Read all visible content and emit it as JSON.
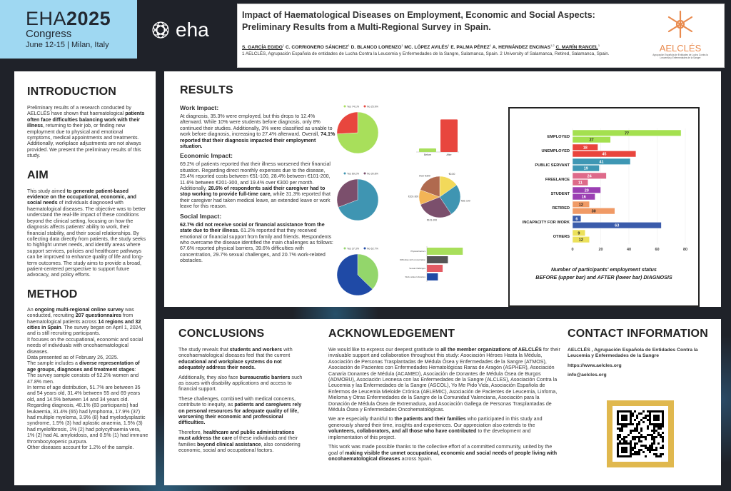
{
  "header": {
    "congress": {
      "eha": "EHA",
      "year": "2025",
      "congress": "Congress",
      "dates": "June 12-15 | Milan, Italy"
    },
    "eha_logo": "eha",
    "title": "Impact of Haematological Diseases on Employment, Economic and Social Aspects: Preliminary Results from a Multi-Regional Survey in Spain.",
    "authors": [
      {
        "name": "S. GARCÍA EGIDO",
        "sup": "1",
        "underline": true
      },
      {
        "name": "C. CORRIONERO SÁNCHEZ",
        "sup": "1",
        "underline": false
      },
      {
        "name": "D. BLANCO LORENZO",
        "sup": "1",
        "underline": false
      },
      {
        "name": "MC. LÓPEZ AVILÉS",
        "sup": "1",
        "underline": false
      },
      {
        "name": "E. PALMA PÉREZ",
        "sup": "1",
        "underline": false
      },
      {
        "name": "A. HERNÁNDEZ ENCINAS",
        "sup": "1,2",
        "underline": false
      },
      {
        "name": "C. MARÍN RANCEL",
        "sup": "1",
        "underline": true
      }
    ],
    "affiliations": "1 AELCLÉS, Agrupación Española de entidades de Lucha Contra la Leucemia y Enfermedades de la Sangre, Salamanca, Spain. 2 University of Salamanca, Retired, Salamanca, Spain.",
    "org_logo": {
      "name": "AELCLÉS",
      "tagline": "Agrupación Española de Entidades de Lucha Contra la Leucemia y Enfermedades de la Sangre"
    }
  },
  "introduction": {
    "heading": "INTRODUCTION",
    "body": [
      [
        {
          "t": "Preliminary results of a research conducted by AELCLÉS have shown that haematological "
        },
        {
          "t": "patients often face difficulties balancing work with their illness",
          "b": true
        },
        {
          "t": ", returning to their job, or finding new employment due to physical and emotional symptoms, medical appointments and treatments. Additionally, workplace adjustments are not always provided. We present the preliminary results of this study."
        }
      ]
    ]
  },
  "aim": {
    "heading": "AIM",
    "body": [
      [
        {
          "t": "This study aimed "
        },
        {
          "t": "to generate patient-based evidence on the occupational, economic, and social needs",
          "b": true
        },
        {
          "t": " of individuals diagnosed with haematological diseases. The objective was to better understand the real-life impact of these conditions beyond the clinical setting, focusing on how the diagnosis affects patients' ability to work, their financial stability, and their social relationships. By collecting data directly from patients, the study seeks to highlight unmet needs, and identify areas where support services, policies and healthcare pathways can be improved to enhance quality of life and long-term outcomes. The study aims to provide a broad, patient-centered perspective to support future advocacy, and policy efforts."
        }
      ]
    ]
  },
  "method": {
    "heading": "METHOD",
    "body": [
      [
        {
          "t": "An "
        },
        {
          "t": "ongoing multi-regional online survey",
          "b": true
        },
        {
          "t": " was conducted, recruiting "
        },
        {
          "t": "207 questionnaires",
          "b": true
        },
        {
          "t": " from haematological patients across "
        },
        {
          "t": "14 regions and 32 cities in Spain",
          "b": true
        },
        {
          "t": ". The survey began on April 1, 2024, and is still recruiting participants."
        }
      ],
      [
        {
          "t": "It focuses on the occupational, economic and social needs of individuals with oncohaematological diseases."
        }
      ],
      [
        {
          "t": "Data presented as of February 26, 2025."
        }
      ],
      [
        {
          "t": "The sample includes a "
        },
        {
          "t": "diverse representation of age groups, diagnoses and treatment stages",
          "b": true
        },
        {
          "t": ":"
        }
      ],
      [
        {
          "t": "The survey sample consists of 52.2% women and 47.8% men."
        }
      ],
      [
        {
          "t": "In terms of age distribution, 51.7% are between 35 and 54 years old, 31.4% between 55 and 69 years old, and 14.5% between 14 and 34 years old."
        }
      ],
      [
        {
          "t": "Regarding diagnosis, 40.1% (83 participants) had leukaemia, 31.4% (65) had lymphoma, 17.9% (37) had multiple myeloma, 3.9% (8) had myelodysplastic syndrome, 1.5% (3) had aplastic anaemia, 1.5% (3) had myelofibrosis, 1% (2) had polycythaemia vera, 1% (2) had AL amyloidosis, and 0.5% (1) had immune thrombocytopenic purpura."
        }
      ],
      [
        {
          "t": "Other diseases account for 1.2% of the sample."
        }
      ]
    ]
  },
  "results": {
    "heading": "RESULTS",
    "work": {
      "heading": "Work Impact:",
      "body": [
        [
          {
            "t": "At diagnosis, 35.3% were employed, but this drops to 12.4% afterward. While 10% were students before diagnosis, only 8% continued their studies. Additionally, 3% were classified as unable to work before diagnosis, increasing to 27.4% afterward. Overall, "
          },
          {
            "t": "74.1% reported that their diagnosis impacted their employment situation.",
            "b": true
          }
        ]
      ]
    },
    "economic": {
      "heading": "Economic Impact:",
      "body": [
        [
          {
            "t": "69.2% of patients reported that their illness worsened their financial situation. Regarding direct monthly expenses due to the disease, 25.4% reported costs between €51-100, 28.4% between €101-200, 11.6% between €201-300, and 19.4% over €300 per month. Additionally, "
          },
          {
            "t": "28.6% of respondents said their caregiver had to stop working to provide full-time care,",
            "b": true
          },
          {
            "t": " while 31.3% reported that their caregiver had taken medical leave, an extended leave or work leave for this reason."
          }
        ]
      ]
    },
    "social": {
      "heading": "Social Impact:",
      "body": [
        [
          {
            "t": "62.7% did not receive social or financial assistance from the state due to their illness.",
            "b": true
          },
          {
            "t": " 61.2% reported that they received emotional or financial support from family and friends. Respondents who overcame the disease identified the main challenges as follows: 67.6% reported physical barriers, 39.6% difficulties with concentration, 29.7% sexual challenges, and 20.7% work-related obstacles."
          }
        ]
      ]
    }
  },
  "chart_data": [
    {
      "type": "bar",
      "orientation": "horizontal",
      "title": "Number of participants' employment status BEFORE (upper bar) and AFTER (lower bar) DIAGNOSIS",
      "title_lines": [
        "Number of participants' employment status",
        "BEFORE (upper bar) and AFTER (lower bar) DIAGNOSIS"
      ],
      "categories": [
        "EMPLOYED",
        "UNEMPLOYED",
        "PUBLIC SERVANT",
        "FREELANCE",
        "STUDENT",
        "RETIRED",
        "INCAPACITY FOR WORK",
        "OTHERS"
      ],
      "series": [
        {
          "name": "Before",
          "values": [
            77,
            18,
            41,
            24,
            20,
            12,
            6,
            9
          ]
        },
        {
          "name": "After",
          "values": [
            27,
            45,
            19,
            11,
            16,
            30,
            63,
            12
          ]
        }
      ],
      "colors": [
        "#a4e04f",
        "#e9453d",
        "#3e97b4",
        "#de6a8a",
        "#9b3fb3",
        "#f09a66",
        "#3b5cab",
        "#ece15a"
      ],
      "xlim": [
        0,
        80
      ],
      "xticks": [
        0,
        20,
        40,
        60,
        80
      ],
      "grid": true
    },
    {
      "type": "pie",
      "title": "Diagnosis impacted employment",
      "slices": [
        {
          "label": "Yes 74.1%",
          "value": 74.1,
          "color": "#a8df5b"
        },
        {
          "label": "No 25.9%",
          "value": 25.9,
          "color": "#e8463e"
        }
      ]
    },
    {
      "type": "bar",
      "title": "Unable to work before and after diagnosis",
      "categories": [
        "Before",
        "After"
      ],
      "values": [
        3,
        27.4
      ],
      "colors": [
        "#a8df5b",
        "#e8463e"
      ],
      "ylim": [
        0,
        30
      ]
    },
    {
      "type": "pie",
      "title": "Financial situation worsened",
      "slices": [
        {
          "label": "Yes 69.2%",
          "value": 69.2,
          "color": "#3f95b2"
        },
        {
          "label": "No 30.8%",
          "value": 30.8,
          "color": "#7b4f6c"
        }
      ]
    },
    {
      "type": "pie",
      "title": "Monthly expenses due to disease",
      "slices": [
        {
          "label": "€0-50",
          "value": 15.2,
          "color": "#f2d95a"
        },
        {
          "label": "€51-100",
          "value": 25.4,
          "color": "#3f95b2"
        },
        {
          "label": "€101-200",
          "value": 28.4,
          "color": "#7b4f6c"
        },
        {
          "label": "€201-300",
          "value": 11.6,
          "color": "#f3b456"
        },
        {
          "label": "Over €300",
          "value": 19.4,
          "color": "#b06a4f"
        }
      ]
    },
    {
      "type": "pie",
      "title": "Received social or financial assistance from the state",
      "slices": [
        {
          "label": "Yes 37.3%",
          "value": 37.3,
          "color": "#93d66b"
        },
        {
          "label": "No 62.7%",
          "value": 62.7,
          "color": "#1f4aa6"
        }
      ]
    },
    {
      "type": "bar",
      "orientation": "horizontal",
      "title": "Obstacles faced after overcoming the disease (%)",
      "categories": [
        "Physical barriers",
        "Difficulties with concentration",
        "Sexual challenges",
        "Work-related obstacles"
      ],
      "values": [
        67.6,
        39.6,
        29.7,
        20.7
      ],
      "colors": [
        "#a8df5b",
        "#555555",
        "#e35a63",
        "#1f4aa6"
      ],
      "xlim": [
        0,
        70
      ]
    }
  ],
  "conclusions": {
    "heading": "CONCLUSIONS",
    "body": [
      [
        {
          "t": "The study reveals that "
        },
        {
          "t": "students and workers",
          "b": true
        },
        {
          "t": " with oncohaematological diseases feel that the current "
        },
        {
          "t": "educational and workplace systems do not adequately address their needs.",
          "b": true
        }
      ],
      [
        {
          "t": "Additionally, they also face "
        },
        {
          "t": "bureaucratic barriers",
          "b": true
        },
        {
          "t": " such as issues with disability applications and access to financial support."
        }
      ],
      [
        {
          "t": "These challenges, combined with medical concerns, contribute to inequity, as "
        },
        {
          "t": "patients and caregivers rely on personal resources for adequate quality of life, worsening their economic and professional difficulties.",
          "b": true
        }
      ],
      [
        {
          "t": "Therefore, "
        },
        {
          "t": "healthcare and public administrations must address the care",
          "b": true
        },
        {
          "t": " of these individuals and their families "
        },
        {
          "t": "beyond clinical assistance",
          "b": true
        },
        {
          "t": ", also considering economic, social and occupational factors."
        }
      ]
    ]
  },
  "acknowledgement": {
    "heading": "ACKNOWLEDGEMENT",
    "body": [
      [
        {
          "t": "We would like to express our deepest gratitude to "
        },
        {
          "t": "all the member organizations of AELCLÉS",
          "b": true
        },
        {
          "t": " for their invaluable support and collaboration throughout this study: Asociación Héroes Hasta la Médula, Asociación de Personas Trasplantadas de Médula Ósea y Enfermedades de la Sangre (ATMOS), Asociación de Pacientes con Enfermedades Hematológicas Raras de Aragón (ASPHER), Asociación Canaria Donantes de Médula (ACAMED), Asociación de Donantes de Médula Ósea de Burgos (ADMOBU), Asociación Leonesa con las Enfermedades de la Sangre (ALCLES), Asociación Contra la Leucemia y las Enfermedades de la Sangre (ASCOL), Yo Me Pido Vida, Asociación Española de Enfermos de Leucemia Mieloide Crónica (AELEMIC), Asociación de Pacientes de Leucemia, Linfoma, Mieloma y Otras Enfermedades de la Sangre de la Comunidad Valenciana, Asociación para la Donación de Médula Ósea de Extremadura, and Asociación Gallega de Personas Trasplantadas de Médula Ósea y Enfermedades Oncohematológicas."
        }
      ],
      [
        {
          "t": "We are especially thankful to "
        },
        {
          "t": "the patients and their families",
          "b": true
        },
        {
          "t": " who participated in this study and generously shared their time, insights and experiences. Our appreciation also extends to the "
        },
        {
          "t": "volunteers, collaborators, and all those who have contributed",
          "b": true
        },
        {
          "t": " to the development and implementation of this project."
        }
      ],
      [
        {
          "t": "This work was made possible thanks to the collective effort of a committed community, united by the goal of "
        },
        {
          "t": "making visible the unmet occupational, economic and social needs of people living with oncohaematological diseases",
          "b": true
        },
        {
          "t": " across Spain."
        }
      ]
    ]
  },
  "contact": {
    "heading": "CONTACT INFORMATION",
    "org": "AELCLÉS , Agrupación Española de Entidades Contra la Leucemia y Enfermedades de la Sangre",
    "website": "https://www.aelcles.org",
    "email": "info@aelcles.org"
  }
}
